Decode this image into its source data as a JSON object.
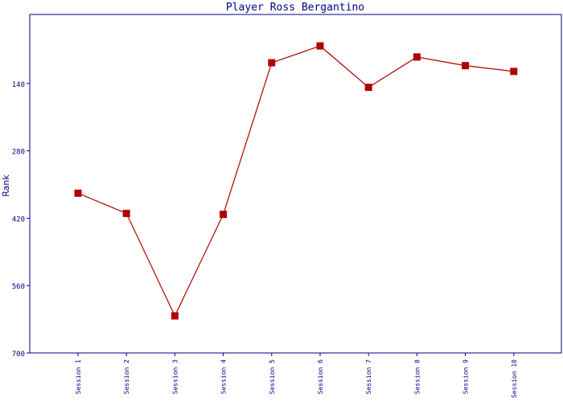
{
  "chart_data": {
    "type": "line",
    "title": "Player Ross Bergantino",
    "y_label": "Rank",
    "categories": [
      "Session 1",
      "Session 2",
      "Session 3",
      "Session 4",
      "Session 5",
      "Session 6",
      "Session 7",
      "Session 8",
      "Session 9",
      "Session 10"
    ],
    "series": [
      {
        "name": "Rank",
        "color": "#b00000",
        "values": [
          368,
          410,
          623,
          412,
          97,
          62,
          148,
          85,
          103,
          115
        ]
      }
    ],
    "ylim": [
      0,
      700
    ],
    "yticks": [
      140,
      280,
      420,
      560,
      700
    ],
    "invert_y": true
  }
}
